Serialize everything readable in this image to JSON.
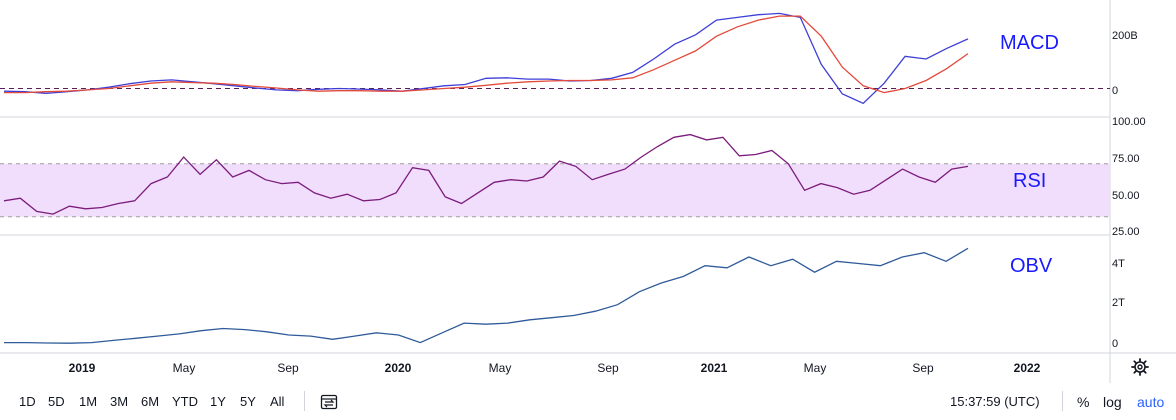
{
  "chart_data": {
    "type": "line",
    "x_ticks": [
      "2019",
      "May",
      "Sep",
      "2020",
      "May",
      "Sep",
      "2021",
      "May",
      "Sep",
      "2022"
    ],
    "panes": [
      {
        "name": "MACD",
        "axis_labels": [
          "200B",
          "0"
        ],
        "ylim": [
          -80,
          300
        ],
        "zero_line": 0,
        "series": [
          {
            "color": "#3f3fd8",
            "values": [
              -10,
              -12,
              -18,
              -12,
              -5,
              5,
              18,
              28,
              32,
              25,
              18,
              10,
              2,
              -5,
              -8,
              -3,
              0,
              -2,
              -5,
              -10,
              0,
              10,
              15,
              38,
              40,
              35,
              35,
              28,
              30,
              38,
              60,
              110,
              165,
              200,
              255,
              265,
              275,
              280,
              265,
              90,
              -20,
              -55,
              20,
              120,
              110,
              150,
              185
            ]
          },
          {
            "color": "#e24a3b",
            "values": [
              -15,
              -15,
              -12,
              -10,
              -5,
              0,
              10,
              20,
              25,
              22,
              20,
              15,
              8,
              2,
              -5,
              -10,
              -8,
              -8,
              -10,
              -10,
              -5,
              0,
              5,
              12,
              20,
              25,
              28,
              30,
              30,
              32,
              40,
              70,
              105,
              140,
              195,
              230,
              255,
              270,
              270,
              195,
              80,
              10,
              -15,
              0,
              30,
              75,
              130
            ]
          }
        ]
      },
      {
        "name": "RSI",
        "axis_labels": [
          "100.00",
          "75.00",
          "50.00",
          "25.00"
        ],
        "ylim": [
          20,
          100
        ],
        "band": [
          30,
          70
        ],
        "series": [
          {
            "color": "#7b1c7b",
            "values": [
              42,
              44,
              34,
              32,
              38,
              36,
              37,
              40,
              42,
              55,
              60,
              75,
              62,
              73,
              60,
              65,
              58,
              55,
              56,
              48,
              44,
              47,
              42,
              43,
              48,
              67,
              65,
              45,
              40,
              48,
              56,
              58,
              57,
              60,
              72,
              68,
              58,
              62,
              66,
              75,
              83,
              90,
              92,
              88,
              90,
              76,
              77,
              80,
              70,
              50,
              55,
              52,
              47,
              50,
              58,
              66,
              60,
              56,
              66,
              68
            ]
          }
        ]
      },
      {
        "name": "OBV",
        "axis_labels": [
          "4T",
          "2T",
          "0"
        ],
        "ylim": [
          -0.2,
          4.6
        ],
        "series": [
          {
            "color": "#2f5b9a",
            "values": [
              0.05,
              0.05,
              0.03,
              0.02,
              0.05,
              0.15,
              0.25,
              0.35,
              0.45,
              0.6,
              0.7,
              0.65,
              0.55,
              0.4,
              0.35,
              0.2,
              0.35,
              0.5,
              0.4,
              0.05,
              0.5,
              0.95,
              0.9,
              0.95,
              1.1,
              1.2,
              1.3,
              1.5,
              1.8,
              2.4,
              2.8,
              3.1,
              3.6,
              3.5,
              4.0,
              3.6,
              3.9,
              3.3,
              3.8,
              3.7,
              3.6,
              4.0,
              4.2,
              3.8,
              4.4
            ]
          }
        ]
      }
    ]
  },
  "toolbar": {
    "timeframes": [
      "1D",
      "5D",
      "1M",
      "3M",
      "6M",
      "YTD",
      "1Y",
      "5Y",
      "All"
    ],
    "compare_icon": "compare-icon",
    "clock": "15:37:59 (UTC)",
    "percent_label": "%",
    "log_label": "log",
    "auto_label": "auto",
    "settings_icon": "gear-icon"
  },
  "colors": {
    "rsi_band": "#f1ddfc",
    "label_blue": "#1a1aff",
    "auto_blue": "#2962ff",
    "dash_line": "#5a1d5a"
  }
}
